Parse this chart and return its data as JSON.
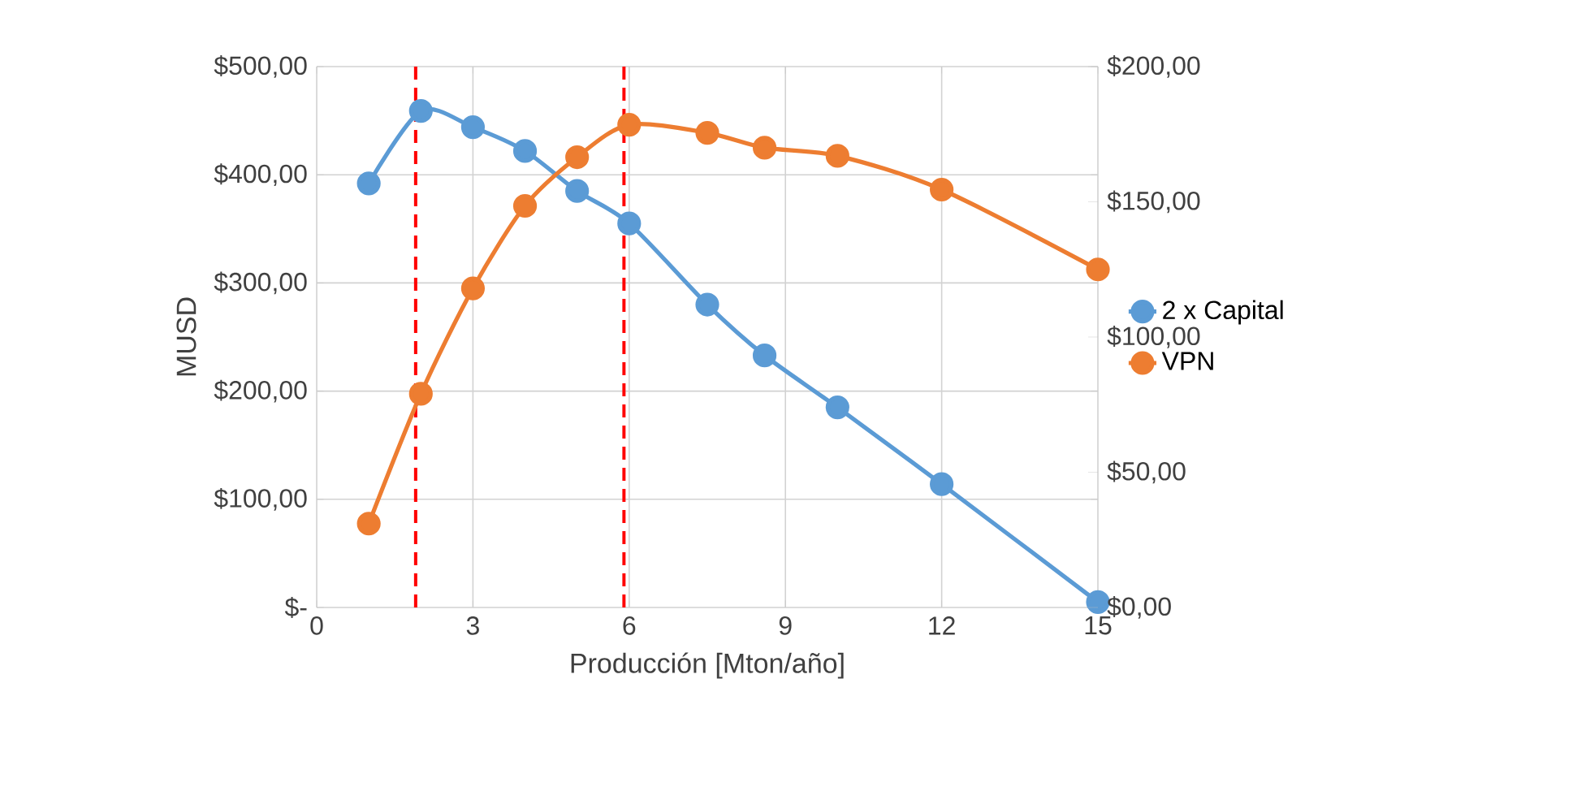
{
  "chart_data": {
    "type": "line",
    "xlabel": "Producción [Mton/año]",
    "ylabel": "MUSD",
    "xlim": [
      0,
      15
    ],
    "xticks": [
      0,
      3,
      6,
      9,
      12,
      15
    ],
    "ylim": [
      0,
      500
    ],
    "yticks": [
      {
        "value": 0,
        "label": "$-"
      },
      {
        "value": 100,
        "label": "$100,00"
      },
      {
        "value": 200,
        "label": "$200,00"
      },
      {
        "value": 300,
        "label": "$300,00"
      },
      {
        "value": 400,
        "label": "$400,00"
      },
      {
        "value": 500,
        "label": "$500,00"
      }
    ],
    "y2lim": [
      0,
      200
    ],
    "y2ticks": [
      {
        "value": 0,
        "label": "$0,00"
      },
      {
        "value": 50,
        "label": "$50,00"
      },
      {
        "value": 100,
        "label": "$100,00"
      },
      {
        "value": 150,
        "label": "$150,00"
      },
      {
        "value": 200,
        "label": "$200,00"
      }
    ],
    "x": [
      1,
      2,
      3,
      4,
      5,
      6,
      7.5,
      8.6,
      10,
      12,
      15
    ],
    "series": [
      {
        "name": "2 x Capital",
        "color": "#5b9bd5",
        "values": [
          392,
          459,
          444,
          422,
          385,
          355,
          280,
          233,
          185,
          114,
          5
        ]
      },
      {
        "name": "VPN",
        "color": "#ed7d31",
        "axis": "y2",
        "values": [
          31,
          79,
          118,
          148.5,
          166.5,
          178.5,
          175.5,
          170,
          167,
          154.5,
          125
        ]
      }
    ],
    "ref_lines": [
      {
        "axis": "x",
        "value": 1.9,
        "label": null,
        "color": "#ff0000",
        "line_style": "dashed"
      },
      {
        "axis": "x",
        "value": 5.9,
        "label": null,
        "color": "#ff0000",
        "line_style": "dashed"
      }
    ],
    "grid": true,
    "legend": "right",
    "marker": "circle",
    "line_style": "solid"
  }
}
